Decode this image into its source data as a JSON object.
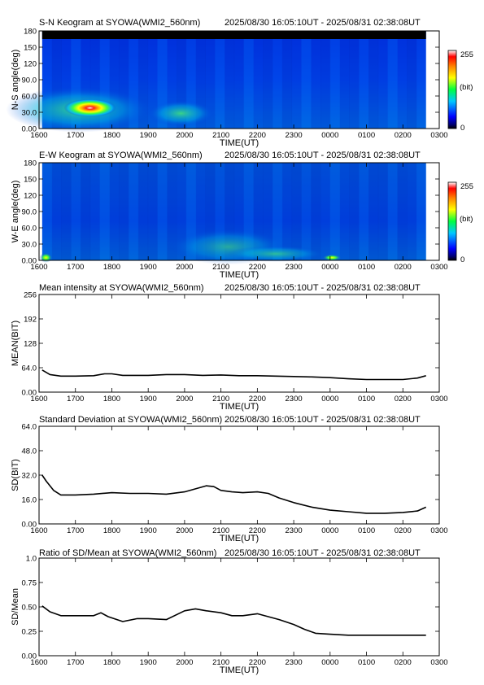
{
  "panels": [
    {
      "id": "sn",
      "type": "heatmap",
      "title": "S-N Keogram at SYOWA(WMI2_560nm)",
      "time_range": "2025/08/30 16:05:10UT - 2025/08/31 02:38:08UT",
      "xlabel": "TIME(UT)",
      "ylabel": "N-S angle(deg)",
      "x_ticks": [
        "1600",
        "1700",
        "1800",
        "1900",
        "2000",
        "2100",
        "2200",
        "2300",
        "0000",
        "0100",
        "0200",
        "0300"
      ],
      "y_ticks": [
        "0.00",
        "30.0",
        "60.0",
        "90.0",
        "120",
        "150",
        "180"
      ],
      "y_range": [
        0,
        180
      ],
      "data_extent_hours": [
        16.086,
        26.636
      ],
      "colorbar": {
        "top": "255",
        "unit": "(bit)",
        "bottom": "0"
      },
      "features": [
        {
          "x": 17.4,
          "y": 38,
          "intensity": 255,
          "note": "bright spot"
        },
        {
          "x": 19.9,
          "y": 28,
          "intensity": 110
        }
      ]
    },
    {
      "id": "ew",
      "type": "heatmap",
      "title": "E-W Keogram at SYOWA(WMI2_560nm)",
      "time_range": "2025/08/30 16:05:10UT - 2025/08/31 02:38:08UT",
      "xlabel": "TIME(UT)",
      "ylabel": "W-E angle(deg)",
      "x_ticks": [
        "1600",
        "1700",
        "1800",
        "1900",
        "2000",
        "2100",
        "2200",
        "2300",
        "0000",
        "0100",
        "0200",
        "0300"
      ],
      "y_ticks": [
        "0.00",
        "30.0",
        "60.0",
        "90.0",
        "120",
        "150",
        "180"
      ],
      "y_range": [
        0,
        180
      ],
      "data_extent_hours": [
        16.086,
        26.636
      ],
      "colorbar": {
        "top": "255",
        "unit": "(bit)",
        "bottom": "0"
      },
      "features": [
        {
          "x": 24.05,
          "y": 5,
          "intensity": 200
        },
        {
          "x": 16.1,
          "y": 5,
          "intensity": 150
        }
      ]
    },
    {
      "id": "mean",
      "type": "line",
      "title": "Mean intensity at SYOWA(WMI2_560nm)",
      "time_range": "2025/08/30 16:05:10UT - 2025/08/31 02:38:08UT",
      "xlabel": "TIME(UT)",
      "ylabel": "MEAN(BIT)",
      "x_ticks": [
        "1600",
        "1700",
        "1800",
        "1900",
        "2000",
        "2100",
        "2200",
        "2300",
        "0000",
        "0100",
        "0200",
        "0300"
      ],
      "y_ticks": [
        "0.00",
        "64.0",
        "128",
        "192",
        "256"
      ],
      "y_range": [
        0,
        256
      ],
      "series": [
        {
          "x": [
            16.086,
            16.3,
            16.6,
            17.0,
            17.5,
            17.8,
            18.0,
            18.3,
            18.6,
            19.0,
            19.5,
            20.0,
            20.5,
            21.0,
            21.5,
            22.0,
            22.5,
            23.0,
            23.5,
            24.0,
            24.5,
            25.0,
            25.5,
            26.0,
            26.4,
            26.636
          ],
          "y": [
            58,
            46,
            42,
            42,
            43,
            48,
            48,
            44,
            44,
            44,
            46,
            46,
            44,
            45,
            43,
            43,
            42,
            41,
            40,
            38,
            35,
            33,
            33,
            33,
            37,
            43
          ]
        }
      ]
    },
    {
      "id": "sd",
      "type": "line",
      "title": "Standard Deviation at SYOWA(WMI2_560nm)",
      "time_range": "2025/08/30 16:05:10UT - 2025/08/31 02:38:08UT",
      "xlabel": "TIME(UT)",
      "ylabel": "SD(BIT)",
      "x_ticks": [
        "1600",
        "1700",
        "1800",
        "1900",
        "2000",
        "2100",
        "2200",
        "2300",
        "0000",
        "0100",
        "0200",
        "0300"
      ],
      "y_ticks": [
        "0.00",
        "16.0",
        "32.0",
        "48.0",
        "64.0"
      ],
      "y_range": [
        0,
        64
      ],
      "series": [
        {
          "x": [
            16.086,
            16.2,
            16.4,
            16.6,
            17.0,
            17.5,
            18.0,
            18.5,
            19.0,
            19.5,
            20.0,
            20.3,
            20.6,
            20.8,
            21.0,
            21.3,
            21.6,
            22.0,
            22.3,
            22.6,
            23.0,
            23.5,
            24.0,
            24.5,
            25.0,
            25.5,
            26.0,
            26.4,
            26.636
          ],
          "y": [
            32,
            28,
            22,
            19,
            19,
            19.5,
            20.5,
            20,
            20,
            19.5,
            21,
            23,
            25,
            24.5,
            22,
            21,
            20.5,
            21,
            20,
            17,
            14,
            11,
            9,
            8,
            7,
            7,
            7.5,
            8.5,
            11
          ]
        }
      ]
    },
    {
      "id": "ratio",
      "type": "line",
      "title": "Ratio of SD/Mean at SYOWA(WMI2_560nm)",
      "time_range": "2025/08/30 16:05:10UT - 2025/08/31 02:38:08UT",
      "xlabel": "TIME(UT)",
      "ylabel": "SD/Mean",
      "x_ticks": [
        "1600",
        "1700",
        "1800",
        "1900",
        "2000",
        "2100",
        "2200",
        "2300",
        "0000",
        "0100",
        "0200",
        "0300"
      ],
      "y_ticks": [
        "0.00",
        "0.25",
        "0.50",
        "0.75",
        "1.0"
      ],
      "y_range": [
        0,
        1
      ],
      "series": [
        {
          "x": [
            16.086,
            16.3,
            16.6,
            17.0,
            17.5,
            17.7,
            17.9,
            18.3,
            18.7,
            19.0,
            19.5,
            20.0,
            20.3,
            20.6,
            21.0,
            21.3,
            21.6,
            22.0,
            22.3,
            22.6,
            23.0,
            23.3,
            23.6,
            24.0,
            24.5,
            25.0,
            25.5,
            26.0,
            26.4,
            26.636
          ],
          "y": [
            0.51,
            0.45,
            0.41,
            0.41,
            0.41,
            0.44,
            0.4,
            0.35,
            0.38,
            0.38,
            0.37,
            0.46,
            0.48,
            0.46,
            0.44,
            0.41,
            0.41,
            0.43,
            0.4,
            0.37,
            0.32,
            0.27,
            0.23,
            0.22,
            0.21,
            0.21,
            0.21,
            0.21,
            0.21,
            0.21
          ]
        }
      ]
    }
  ]
}
